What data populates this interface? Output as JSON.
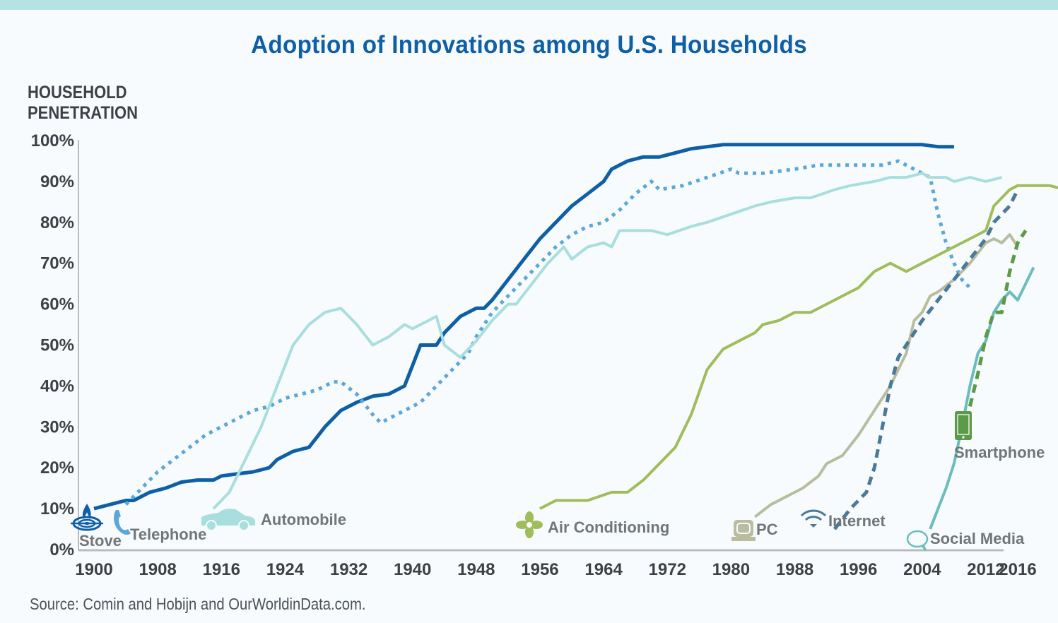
{
  "title": "Adoption of Innovations among U.S. Households",
  "source": "Source: Comin and Hobijn and OurWorldinData.com.",
  "chart_data": {
    "type": "line",
    "title": "Adoption of Innovations among U.S. Households",
    "ylabel": "HOUSEHOLD PENETRATION",
    "ylabel_lines": [
      "HOUSEHOLD",
      "PENETRATION"
    ],
    "xlabel": "",
    "xlim": [
      1900,
      2016
    ],
    "ylim": [
      0,
      100
    ],
    "x_ticks": [
      1900,
      1908,
      1916,
      1924,
      1932,
      1940,
      1948,
      1956,
      1964,
      1972,
      1980,
      1988,
      1996,
      2004,
      2012,
      2016
    ],
    "y_ticks": [
      0,
      10,
      20,
      30,
      40,
      50,
      60,
      70,
      80,
      90,
      100
    ],
    "y_tick_labels": [
      "0%",
      "10%",
      "20%",
      "30%",
      "40%",
      "50%",
      "60%",
      "70%",
      "80%",
      "90%",
      "100%"
    ],
    "grid": false,
    "legend": "inline-labels",
    "series": [
      {
        "name": "Stove",
        "icon": "stove-icon",
        "color": "#0e5fa6",
        "style": "solid",
        "points": [
          [
            1900,
            10
          ],
          [
            1902,
            11
          ],
          [
            1904,
            12
          ],
          [
            1905,
            12
          ],
          [
            1907,
            14
          ],
          [
            1909,
            15
          ],
          [
            1911,
            16.5
          ],
          [
            1913,
            17
          ],
          [
            1915,
            17
          ],
          [
            1916,
            18
          ],
          [
            1918,
            18.5
          ],
          [
            1920,
            19
          ],
          [
            1922,
            20
          ],
          [
            1923,
            22
          ],
          [
            1925,
            24
          ],
          [
            1927,
            25
          ],
          [
            1929,
            30
          ],
          [
            1931,
            34
          ],
          [
            1933,
            36
          ],
          [
            1935,
            37.5
          ],
          [
            1937,
            38
          ],
          [
            1939,
            40
          ],
          [
            1941,
            50
          ],
          [
            1943,
            50
          ],
          [
            1944,
            53
          ],
          [
            1946,
            57
          ],
          [
            1948,
            59
          ],
          [
            1949,
            59
          ],
          [
            1950,
            61
          ],
          [
            1952,
            66
          ],
          [
            1954,
            71
          ],
          [
            1956,
            76
          ],
          [
            1958,
            80
          ],
          [
            1960,
            84
          ],
          [
            1962,
            87
          ],
          [
            1964,
            90
          ],
          [
            1965,
            93
          ],
          [
            1967,
            95
          ],
          [
            1969,
            96
          ],
          [
            1971,
            96
          ],
          [
            1973,
            97
          ],
          [
            1975,
            98
          ],
          [
            1977,
            98.5
          ],
          [
            1979,
            99
          ],
          [
            1981,
            99
          ],
          [
            1985,
            99
          ],
          [
            1990,
            99
          ],
          [
            1995,
            99
          ],
          [
            2000,
            99
          ],
          [
            2004,
            99
          ],
          [
            2006,
            98.5
          ],
          [
            2008,
            98.5
          ]
        ]
      },
      {
        "name": "Telephone",
        "icon": "telephone-icon",
        "color": "#5ba7da",
        "style": "dotted",
        "points": [
          [
            1904,
            11
          ],
          [
            1906,
            15
          ],
          [
            1908,
            19
          ],
          [
            1910,
            22
          ],
          [
            1912,
            25
          ],
          [
            1914,
            28
          ],
          [
            1916,
            30
          ],
          [
            1918,
            32
          ],
          [
            1920,
            34
          ],
          [
            1922,
            35
          ],
          [
            1924,
            37
          ],
          [
            1926,
            38
          ],
          [
            1928,
            39
          ],
          [
            1930,
            41
          ],
          [
            1931,
            41
          ],
          [
            1933,
            38
          ],
          [
            1935,
            33
          ],
          [
            1936,
            31
          ],
          [
            1938,
            33
          ],
          [
            1940,
            35
          ],
          [
            1941,
            36
          ],
          [
            1943,
            40
          ],
          [
            1945,
            44
          ],
          [
            1947,
            48
          ],
          [
            1948,
            52
          ],
          [
            1950,
            58
          ],
          [
            1952,
            62
          ],
          [
            1954,
            66
          ],
          [
            1956,
            70
          ],
          [
            1958,
            74
          ],
          [
            1960,
            77
          ],
          [
            1962,
            79
          ],
          [
            1964,
            80
          ],
          [
            1966,
            83
          ],
          [
            1968,
            87
          ],
          [
            1970,
            90
          ],
          [
            1971,
            88
          ],
          [
            1974,
            89
          ],
          [
            1977,
            91
          ],
          [
            1980,
            93
          ],
          [
            1981,
            92
          ],
          [
            1984,
            92
          ],
          [
            1988,
            93
          ],
          [
            1991,
            94
          ],
          [
            1995,
            94
          ],
          [
            1999,
            94
          ],
          [
            2001,
            95
          ],
          [
            2003,
            93
          ],
          [
            2005,
            91
          ],
          [
            2006,
            82
          ],
          [
            2007,
            75
          ],
          [
            2008,
            70
          ],
          [
            2009,
            66
          ],
          [
            2010,
            64
          ]
        ]
      },
      {
        "name": "Automobile",
        "icon": "car-icon",
        "color": "#a8dede",
        "style": "solid",
        "points": [
          [
            1915,
            10
          ],
          [
            1917,
            14
          ],
          [
            1919,
            22
          ],
          [
            1921,
            30
          ],
          [
            1923,
            40
          ],
          [
            1925,
            50
          ],
          [
            1927,
            55
          ],
          [
            1929,
            58
          ],
          [
            1931,
            59
          ],
          [
            1933,
            55
          ],
          [
            1935,
            50
          ],
          [
            1937,
            52
          ],
          [
            1939,
            55
          ],
          [
            1940,
            54
          ],
          [
            1942,
            56
          ],
          [
            1943,
            57
          ],
          [
            1944,
            50
          ],
          [
            1946,
            47
          ],
          [
            1948,
            51
          ],
          [
            1950,
            56
          ],
          [
            1952,
            60
          ],
          [
            1953,
            60
          ],
          [
            1955,
            65
          ],
          [
            1957,
            70
          ],
          [
            1959,
            74
          ],
          [
            1960,
            71
          ],
          [
            1962,
            74
          ],
          [
            1964,
            75
          ],
          [
            1965,
            74
          ],
          [
            1966,
            78
          ],
          [
            1968,
            78
          ],
          [
            1970,
            78
          ],
          [
            1972,
            77
          ],
          [
            1975,
            79
          ],
          [
            1977,
            80
          ],
          [
            1980,
            82
          ],
          [
            1983,
            84
          ],
          [
            1985,
            85
          ],
          [
            1988,
            86
          ],
          [
            1990,
            86
          ],
          [
            1993,
            88
          ],
          [
            1995,
            89
          ],
          [
            1998,
            90
          ],
          [
            2000,
            91
          ],
          [
            2002,
            91
          ],
          [
            2004,
            92
          ],
          [
            2005,
            91
          ],
          [
            2007,
            91
          ],
          [
            2008,
            90
          ],
          [
            2010,
            91
          ],
          [
            2012,
            90
          ],
          [
            2014,
            91
          ]
        ]
      },
      {
        "name": "Air Conditioning",
        "icon": "fan-icon",
        "color": "#9fbd5a",
        "style": "solid",
        "points": [
          [
            1956,
            10
          ],
          [
            1958,
            12
          ],
          [
            1962,
            12
          ],
          [
            1965,
            14
          ],
          [
            1967,
            14
          ],
          [
            1969,
            17
          ],
          [
            1971,
            21
          ],
          [
            1973,
            25
          ],
          [
            1975,
            33
          ],
          [
            1977,
            44
          ],
          [
            1979,
            49
          ],
          [
            1981,
            51
          ],
          [
            1983,
            53
          ],
          [
            1984,
            55
          ],
          [
            1986,
            56
          ],
          [
            1988,
            58
          ],
          [
            1990,
            58
          ],
          [
            1992,
            60
          ],
          [
            1994,
            62
          ],
          [
            1996,
            64
          ],
          [
            1998,
            68
          ],
          [
            2000,
            70
          ],
          [
            2002,
            68
          ],
          [
            2004,
            70
          ],
          [
            2006,
            72
          ],
          [
            2008,
            74
          ],
          [
            2010,
            76
          ],
          [
            2012,
            78
          ],
          [
            2013,
            84
          ],
          [
            2015,
            88
          ],
          [
            2016,
            89
          ],
          [
            2020,
            89
          ],
          [
            2022,
            88
          ],
          [
            2024,
            87
          ],
          [
            2026,
            88.5
          ],
          [
            2028,
            89
          ]
        ]
      },
      {
        "name": "PC",
        "icon": "pc-icon",
        "color": "#b9bd9e",
        "style": "solid",
        "points": [
          [
            1983,
            8
          ],
          [
            1985,
            11
          ],
          [
            1987,
            13
          ],
          [
            1989,
            15
          ],
          [
            1991,
            18
          ],
          [
            1992,
            21
          ],
          [
            1994,
            23
          ],
          [
            1996,
            28
          ],
          [
            1998,
            34
          ],
          [
            2000,
            40
          ],
          [
            2002,
            48
          ],
          [
            2003,
            56
          ],
          [
            2004,
            58
          ],
          [
            2005,
            62
          ],
          [
            2006,
            63
          ],
          [
            2008,
            66
          ],
          [
            2010,
            70
          ],
          [
            2012,
            75
          ],
          [
            2013,
            76
          ],
          [
            2014,
            75
          ],
          [
            2015,
            77
          ],
          [
            2016,
            74
          ]
        ]
      },
      {
        "name": "Internet",
        "icon": "wifi-icon",
        "color": "#4a7a9b",
        "style": "dashed",
        "points": [
          [
            1993,
            5
          ],
          [
            1995,
            10
          ],
          [
            1997,
            14
          ],
          [
            1998,
            20
          ],
          [
            1999,
            30
          ],
          [
            2000,
            40
          ],
          [
            2001,
            47
          ],
          [
            2002,
            50
          ],
          [
            2003,
            53
          ],
          [
            2004,
            56
          ],
          [
            2006,
            61
          ],
          [
            2008,
            66
          ],
          [
            2010,
            71
          ],
          [
            2012,
            76
          ],
          [
            2013,
            80
          ],
          [
            2014,
            82
          ],
          [
            2015,
            84
          ],
          [
            2016,
            88
          ]
        ]
      },
      {
        "name": "Social Media",
        "icon": "speech-bubble-icon",
        "color": "#6bbdbd",
        "style": "solid",
        "points": [
          [
            2005,
            5
          ],
          [
            2006,
            10
          ],
          [
            2007,
            15
          ],
          [
            2008,
            21
          ],
          [
            2009,
            30
          ],
          [
            2010,
            40
          ],
          [
            2011,
            48
          ],
          [
            2012,
            51
          ],
          [
            2013,
            58
          ],
          [
            2014,
            61
          ],
          [
            2015,
            63
          ],
          [
            2016,
            61
          ],
          [
            2017,
            65
          ],
          [
            2018,
            69
          ]
        ]
      },
      {
        "name": "Smartphone",
        "icon": "smartphone-icon",
        "color": "#5b9a46",
        "style": "dashed",
        "points": [
          [
            2010,
            35
          ],
          [
            2011,
            43
          ],
          [
            2012,
            52
          ],
          [
            2013,
            58
          ],
          [
            2014,
            58
          ],
          [
            2015,
            68
          ],
          [
            2016,
            75
          ],
          [
            2017,
            78
          ]
        ]
      }
    ]
  }
}
